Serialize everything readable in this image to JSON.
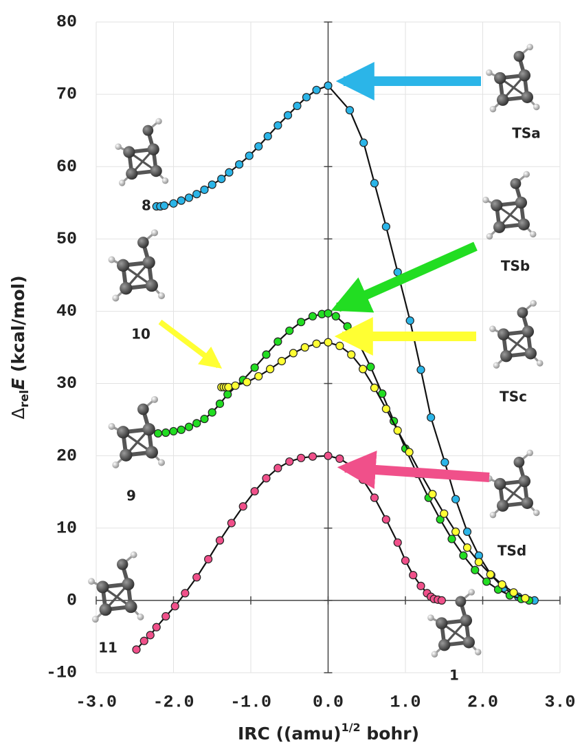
{
  "chart_data": {
    "type": "line",
    "xlabel_parts": [
      "IRC ((amu)",
      "1/2",
      " bohr)"
    ],
    "ylabel_parts": [
      "Δ",
      "rel",
      "E",
      " (kcal/mol)"
    ],
    "xlim": [
      -3,
      3
    ],
    "ylim": [
      -10,
      80
    ],
    "xticks": [
      {
        "value": -3,
        "label": "-3.0"
      },
      {
        "value": -2,
        "label": "-2.0"
      },
      {
        "value": -1,
        "label": "-1.0"
      },
      {
        "value": 0,
        "label": "0.0"
      },
      {
        "value": 1,
        "label": "1.0"
      },
      {
        "value": 2,
        "label": "2.0"
      },
      {
        "value": 3,
        "label": "3.0"
      }
    ],
    "yticks": [
      -10,
      0,
      10,
      20,
      30,
      40,
      50,
      60,
      70,
      80
    ],
    "grid": true,
    "markers": true,
    "series": [
      {
        "color": "#2bb5e8",
        "x": [
          -2.22,
          -2.17,
          -2.12,
          -2.0,
          -1.9,
          -1.8,
          -1.7,
          -1.6,
          -1.5,
          -1.38,
          -1.28,
          -1.15,
          -1.02,
          -0.9,
          -0.78,
          -0.65,
          -0.52,
          -0.4,
          -0.28,
          -0.15,
          0.0,
          0.28,
          0.46,
          0.6,
          0.75,
          0.9,
          1.06,
          1.2,
          1.33,
          1.51,
          1.65,
          1.8,
          1.95,
          2.11,
          2.27,
          2.46,
          2.67
        ],
        "values": [
          54.5,
          54.5,
          54.6,
          54.9,
          55.3,
          55.7,
          56.2,
          56.8,
          57.5,
          58.3,
          59.2,
          60.3,
          61.5,
          62.8,
          64.2,
          65.7,
          67.1,
          68.4,
          69.6,
          70.6,
          71.2,
          67.8,
          63.3,
          57.7,
          51.7,
          45.4,
          38.7,
          31.9,
          25.3,
          19.1,
          14.0,
          9.5,
          6.2,
          3.5,
          1.7,
          0.5,
          0.0
        ]
      },
      {
        "color": "#22dd22",
        "x": [
          -2.2,
          -2.1,
          -2.0,
          -1.9,
          -1.8,
          -1.7,
          -1.6,
          -1.5,
          -1.4,
          -1.3,
          -1.1,
          -0.95,
          -0.8,
          -0.65,
          -0.5,
          -0.35,
          -0.2,
          -0.08,
          0.0,
          0.1,
          0.25,
          0.4,
          0.55,
          0.7,
          0.85,
          1.0,
          1.15,
          1.3,
          1.45,
          1.6,
          1.75,
          1.9,
          2.05,
          2.2,
          2.35,
          2.5,
          2.6
        ],
        "values": [
          23.1,
          23.2,
          23.4,
          23.6,
          24.0,
          24.5,
          25.1,
          26.0,
          27.2,
          28.5,
          30.5,
          32.2,
          34.0,
          35.8,
          37.3,
          38.5,
          39.3,
          39.6,
          39.7,
          39.3,
          37.9,
          35.5,
          32.3,
          28.6,
          24.8,
          21.0,
          17.5,
          14.2,
          11.2,
          8.5,
          6.2,
          4.2,
          2.6,
          1.5,
          0.7,
          0.2,
          0.0
        ]
      },
      {
        "color": "#ffff33",
        "x": [
          -1.38,
          -1.35,
          -1.32,
          -1.29,
          -1.2,
          -1.05,
          -0.9,
          -0.75,
          -0.6,
          -0.45,
          -0.3,
          -0.15,
          0.0,
          0.15,
          0.3,
          0.45,
          0.6,
          0.75,
          0.9,
          1.05,
          1.2,
          1.35,
          1.5,
          1.65,
          1.8,
          1.95,
          2.1,
          2.25,
          2.4,
          2.55
        ],
        "values": [
          29.5,
          29.5,
          29.5,
          29.5,
          29.7,
          30.2,
          31.0,
          32.0,
          33.1,
          34.2,
          35.0,
          35.5,
          35.7,
          35.2,
          34.0,
          32.0,
          29.4,
          26.5,
          23.5,
          20.5,
          17.5,
          14.7,
          12.0,
          9.5,
          7.3,
          5.3,
          3.6,
          2.2,
          1.1,
          0.3
        ]
      },
      {
        "color": "#f0508a",
        "x": [
          -2.48,
          -2.38,
          -2.3,
          -2.22,
          -2.1,
          -1.98,
          -1.85,
          -1.7,
          -1.55,
          -1.4,
          -1.25,
          -1.1,
          -0.95,
          -0.8,
          -0.65,
          -0.5,
          -0.35,
          -0.2,
          0.0,
          0.15,
          0.3,
          0.45,
          0.6,
          0.75,
          0.9,
          1.0,
          1.1,
          1.2,
          1.28,
          1.33,
          1.37,
          1.42,
          1.47
        ],
        "values": [
          -6.8,
          -5.6,
          -4.8,
          -3.7,
          -2.2,
          -0.8,
          1.0,
          3.2,
          5.7,
          8.3,
          10.7,
          13.0,
          15.1,
          16.9,
          18.3,
          19.2,
          19.7,
          19.9,
          20.0,
          19.6,
          18.6,
          16.7,
          14.2,
          11.2,
          8.0,
          5.5,
          3.5,
          2.0,
          1.0,
          0.5,
          0.2,
          0.1,
          0.0
        ]
      }
    ],
    "annotations": [
      "8",
      "10",
      "9",
      "11",
      "1",
      "TSa",
      "TSb",
      "TSc",
      "TSd"
    ]
  }
}
